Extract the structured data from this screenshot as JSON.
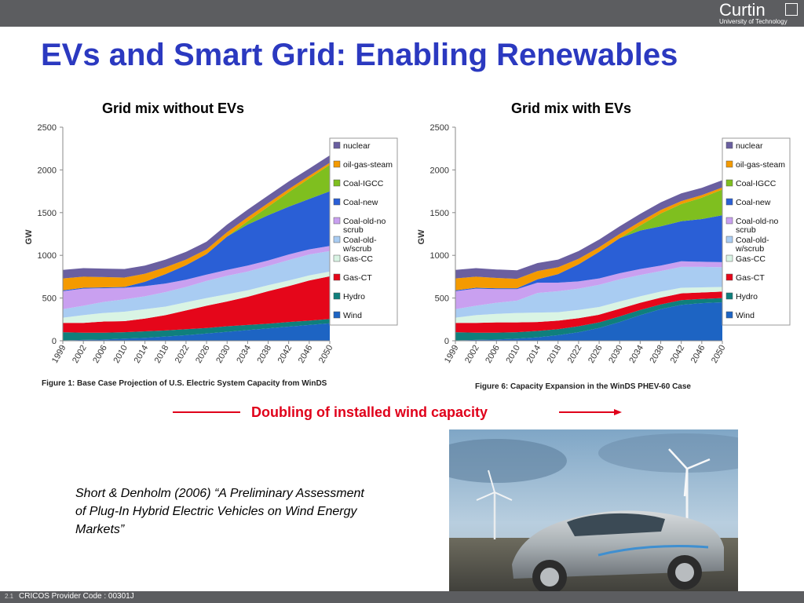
{
  "header": {
    "logo_name": "Curtin",
    "logo_sub": "University of Technology"
  },
  "title": "EVs and Smart Grid: Enabling Renewables",
  "colors": {
    "nuclear": "#6a5fa0",
    "oil-gas-steam": "#f49a00",
    "Coal-IGCC": "#7fbf1f",
    "Coal-new": "#2a5fd6",
    "Coal-old-no scrub": "#c9a0f0",
    "Coal-old-w/scrub": "#a9ccf2",
    "Gas-CC": "#d9f4e4",
    "Gas-CT": "#e5061a",
    "Hydro": "#0f7f7c",
    "Wind": "#1d64c3"
  },
  "chart_data": [
    {
      "type": "area",
      "stacked": true,
      "title": "Grid mix without EVs",
      "caption": "Figure 1: Base Case Projection of U.S. Electric System Capacity from WinDS",
      "ylabel": "GW",
      "ylim": [
        0,
        2500
      ],
      "yticks": [
        "0",
        "500",
        "1000",
        "1500",
        "2000",
        "2500"
      ],
      "x": [
        1999,
        2002,
        2006,
        2010,
        2014,
        2018,
        2022,
        2026,
        2030,
        2034,
        2038,
        2042,
        2046,
        2050
      ],
      "xticks": [
        "1999",
        "2002",
        "2006",
        "2010",
        "2014",
        "2018",
        "2022",
        "2026",
        "2030",
        "2034",
        "2038",
        "2042",
        "2046",
        "2050"
      ],
      "legend": [
        "nuclear",
        "oil-gas-steam",
        "Coal-IGCC",
        "Coal-new",
        "Coal-old-no scrub",
        "Coal-old-w/scrub",
        "Gas-CC",
        "Gas-CT",
        "Hydro",
        "Wind"
      ],
      "series": [
        {
          "name": "Wind",
          "values": [
            5,
            10,
            15,
            25,
            35,
            50,
            65,
            85,
            105,
            125,
            145,
            165,
            185,
            205
          ]
        },
        {
          "name": "Hydro",
          "values": [
            95,
            85,
            80,
            75,
            75,
            70,
            70,
            65,
            65,
            60,
            55,
            55,
            50,
            50
          ]
        },
        {
          "name": "Gas-CT",
          "values": [
            110,
            115,
            130,
            130,
            150,
            180,
            220,
            260,
            290,
            330,
            380,
            420,
            470,
            500
          ]
        },
        {
          "name": "Gas-CC",
          "values": [
            60,
            90,
            100,
            110,
            110,
            100,
            95,
            90,
            85,
            75,
            70,
            65,
            60,
            55
          ]
        },
        {
          "name": "Coal-old-w/scrub",
          "values": [
            100,
            110,
            130,
            145,
            150,
            170,
            180,
            200,
            215,
            220,
            225,
            240,
            245,
            240
          ]
        },
        {
          "name": "Coal-old-no scrub",
          "values": [
            210,
            200,
            160,
            135,
            120,
            100,
            85,
            75,
            70,
            70,
            65,
            65,
            60,
            60
          ]
        },
        {
          "name": "Coal-new",
          "values": [
            10,
            10,
            10,
            10,
            50,
            110,
            170,
            240,
            390,
            480,
            530,
            560,
            590,
            640
          ]
        },
        {
          "name": "Coal-IGCC",
          "values": [
            0,
            0,
            0,
            0,
            0,
            0,
            0,
            0,
            0,
            40,
            100,
            170,
            240,
            310
          ]
        },
        {
          "name": "oil-gas-steam",
          "values": [
            140,
            130,
            120,
            110,
            95,
            80,
            65,
            55,
            50,
            45,
            40,
            35,
            30,
            25
          ]
        },
        {
          "name": "nuclear",
          "values": [
            100,
            100,
            100,
            100,
            95,
            90,
            90,
            90,
            90,
            90,
            90,
            90,
            85,
            85
          ]
        }
      ]
    },
    {
      "type": "area",
      "stacked": true,
      "title": "Grid mix with EVs",
      "caption": "Figure 6: Capacity Expansion in the WinDS PHEV-60 Case",
      "ylabel": "GW",
      "ylim": [
        0,
        2500
      ],
      "yticks": [
        "0",
        "500",
        "1000",
        "1500",
        "2000",
        "2500"
      ],
      "x": [
        1999,
        2002,
        2006,
        2010,
        2014,
        2018,
        2022,
        2026,
        2030,
        2034,
        2038,
        2042,
        2046,
        2050
      ],
      "xticks": [
        "1999",
        "2002",
        "2006",
        "2010",
        "2014",
        "2018",
        "2022",
        "2026",
        "2030",
        "2034",
        "2038",
        "2042",
        "2046",
        "2050"
      ],
      "legend": [
        "nuclear",
        "oil-gas-steam",
        "Coal-IGCC",
        "Coal-new",
        "Coal-old-no scrub",
        "Coal-old-w/scrub",
        "Gas-CC",
        "Gas-CT",
        "Hydro",
        "Wind"
      ],
      "series": [
        {
          "name": "Wind",
          "values": [
            5,
            10,
            15,
            25,
            40,
            65,
            100,
            150,
            220,
            300,
            370,
            420,
            440,
            450
          ]
        },
        {
          "name": "Hydro",
          "values": [
            95,
            85,
            80,
            75,
            75,
            70,
            70,
            65,
            65,
            60,
            55,
            55,
            50,
            50
          ]
        },
        {
          "name": "Gas-CT",
          "values": [
            110,
            115,
            120,
            115,
            105,
            100,
            95,
            90,
            90,
            85,
            80,
            80,
            75,
            75
          ]
        },
        {
          "name": "Gas-CC",
          "values": [
            60,
            90,
            100,
            110,
            110,
            100,
            95,
            90,
            85,
            75,
            70,
            65,
            60,
            55
          ]
        },
        {
          "name": "Coal-old-w/scrub",
          "values": [
            100,
            110,
            130,
            145,
            230,
            245,
            250,
            260,
            260,
            250,
            240,
            245,
            240,
            230
          ]
        },
        {
          "name": "Coal-old-no scrub",
          "values": [
            210,
            200,
            160,
            135,
            120,
            100,
            85,
            75,
            70,
            70,
            65,
            65,
            60,
            60
          ]
        },
        {
          "name": "Coal-new",
          "values": [
            10,
            10,
            10,
            10,
            40,
            100,
            200,
            310,
            410,
            450,
            460,
            470,
            500,
            550
          ]
        },
        {
          "name": "Coal-IGCC",
          "values": [
            0,
            0,
            0,
            0,
            0,
            0,
            0,
            0,
            0,
            60,
            150,
            200,
            250,
            300
          ]
        },
        {
          "name": "oil-gas-steam",
          "values": [
            140,
            130,
            120,
            110,
            95,
            80,
            65,
            55,
            50,
            45,
            40,
            35,
            30,
            25
          ]
        },
        {
          "name": "nuclear",
          "values": [
            100,
            100,
            100,
            100,
            95,
            90,
            90,
            90,
            90,
            90,
            90,
            90,
            85,
            85
          ]
        }
      ]
    }
  ],
  "legend_labels": {
    "nuclear": [
      "nuclear"
    ],
    "oil-gas-steam": [
      "oil-gas-steam"
    ],
    "Coal-IGCC": [
      "Coal-IGCC"
    ],
    "Coal-new": [
      "Coal-new"
    ],
    "Coal-old-no scrub": [
      "Coal-old-no",
      "scrub"
    ],
    "Coal-old-w/scrub": [
      "Coal-old-",
      "w/scrub"
    ],
    "Gas-CC": [
      "Gas-CC"
    ],
    "Gas-CT": [
      "Gas-CT"
    ],
    "Hydro": [
      "Hydro"
    ],
    "Wind": [
      "Wind"
    ]
  },
  "annotation": {
    "text": "Doubling of installed wind capacity"
  },
  "citation": "Short & Denholm (2006) “A Preliminary Assessment of Plug-In Hybrid Electric Vehicles on Wind Energy Markets”",
  "footer": {
    "slide_number": "2.1",
    "text": "CRICOS Provider Code : 00301J"
  }
}
